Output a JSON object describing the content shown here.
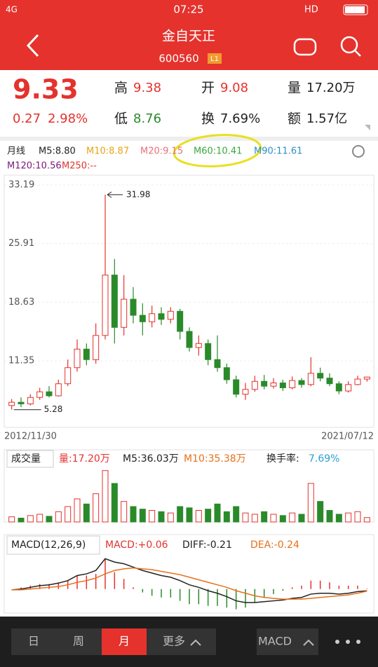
{
  "status_bar": {
    "network": "4G",
    "time": "07:25",
    "hd": "HD"
  },
  "header": {
    "title": "金自天正",
    "code": "600560",
    "badge": "L1"
  },
  "quote": {
    "price": "9.33",
    "change": "0.27",
    "change_pct": "2.98%",
    "fields": [
      {
        "label": "高",
        "value": "9.38",
        "color": "#e5322d"
      },
      {
        "label": "开",
        "value": "9.08",
        "color": "#e5322d"
      },
      {
        "label": "量",
        "value": "17.20万",
        "color": "#222222"
      },
      {
        "label": "低",
        "value": "8.76",
        "color": "#2a8a2a"
      },
      {
        "label": "换",
        "value": "7.69%",
        "color": "#222222"
      },
      {
        "label": "额",
        "value": "1.57亿",
        "color": "#222222"
      }
    ]
  },
  "ma_legend": {
    "period": "月线",
    "items": [
      {
        "text": "M5:8.80",
        "color": "#222222"
      },
      {
        "text": "M10:8.87",
        "color": "#e8a317"
      },
      {
        "text": "M20:9.15",
        "color": "#e8707a"
      },
      {
        "text": "M60:10.41",
        "color": "#3aa83a"
      },
      {
        "text": "M90:11.61",
        "color": "#2b8fc4"
      },
      {
        "text": "M120:10.56",
        "color": "#7a1a7a"
      },
      {
        "text": "M250:--",
        "color": "#e5322d"
      }
    ]
  },
  "chart_data": [
    {
      "type": "candlestick",
      "up_color": "#e5322d",
      "down_color": "#2a8a2a",
      "categories": [
        "2012/11/30",
        null,
        null,
        null,
        null,
        null,
        null,
        null,
        null,
        null,
        null,
        null,
        null,
        null,
        null,
        null,
        null,
        null,
        null,
        null,
        null,
        null,
        null,
        null,
        null,
        null,
        null,
        null,
        null,
        null,
        null,
        null,
        null,
        null,
        null,
        null,
        null,
        null,
        "2021/07/12"
      ],
      "open": [
        5.8,
        6.2,
        6.0,
        6.8,
        7.5,
        7.0,
        8.5,
        10.5,
        12.8,
        11.5,
        14.5,
        22.0,
        15.5,
        19.0,
        17.0,
        16.2,
        17.2,
        16.5,
        17.5,
        15.0,
        13.0,
        13.5,
        11.5,
        10.5,
        9.0,
        7.2,
        7.8,
        8.8,
        8.2,
        8.6,
        8.0,
        8.9,
        8.4,
        9.8,
        9.2,
        8.5,
        7.6,
        8.4,
        9.08
      ],
      "close": [
        6.2,
        6.0,
        6.8,
        7.5,
        7.0,
        8.5,
        10.5,
        12.8,
        11.5,
        14.5,
        22.0,
        15.5,
        19.0,
        17.0,
        16.2,
        17.2,
        16.5,
        17.5,
        15.0,
        13.0,
        13.5,
        11.5,
        10.5,
        9.0,
        7.2,
        7.8,
        8.8,
        8.2,
        8.6,
        8.0,
        8.9,
        8.4,
        9.8,
        9.2,
        8.5,
        7.6,
        8.4,
        9.08,
        9.33
      ],
      "high": [
        6.6,
        6.8,
        7.2,
        8.0,
        8.2,
        9.0,
        11.5,
        14.0,
        13.5,
        16.0,
        31.98,
        24.0,
        22.0,
        20.5,
        18.5,
        18.2,
        18.0,
        18.0,
        17.8,
        15.5,
        14.5,
        14.0,
        14.5,
        11.0,
        9.5,
        8.6,
        9.5,
        9.6,
        9.2,
        9.0,
        9.4,
        9.2,
        11.8,
        10.5,
        9.8,
        8.8,
        8.8,
        9.5,
        9.38
      ],
      "low": [
        5.28,
        5.6,
        5.8,
        6.5,
        6.8,
        6.9,
        8.2,
        10.0,
        10.8,
        11.0,
        14.0,
        13.5,
        14.5,
        16.0,
        14.5,
        15.5,
        15.8,
        16.0,
        14.0,
        12.5,
        12.0,
        10.8,
        10.0,
        8.5,
        6.8,
        6.5,
        7.5,
        7.8,
        7.9,
        7.6,
        7.8,
        8.0,
        8.2,
        8.8,
        8.2,
        7.2,
        7.4,
        8.3,
        8.76
      ],
      "ylim": [
        3.08,
        33.71
      ],
      "yticks": [
        33.19,
        25.91,
        18.63,
        11.35
      ]
    },
    {
      "type": "volume",
      "legend_title": "成交量",
      "legend": [
        {
          "text": "量:17.20万",
          "color": "#e5322d"
        },
        {
          "text": "M5:36.03万",
          "color": "#222222"
        },
        {
          "text": "M10:35.38万",
          "color": "#e8701a"
        },
        {
          "text": "换手率:",
          "color": "#222222"
        },
        {
          "text": "7.69%",
          "color": "#2b9fd4"
        }
      ],
      "values": [
        20,
        15,
        25,
        30,
        22,
        40,
        60,
        90,
        70,
        110,
        200,
        150,
        80,
        60,
        50,
        45,
        40,
        35,
        60,
        55,
        45,
        50,
        70,
        40,
        60,
        35,
        30,
        40,
        30,
        25,
        35,
        30,
        150,
        80,
        45,
        30,
        35,
        40,
        17.2
      ],
      "ylim": [
        0,
        210
      ]
    },
    {
      "type": "macd",
      "legend_title": "MACD(12,26,9)",
      "legend": [
        {
          "text": "MACD:+0.06",
          "color": "#e5322d"
        },
        {
          "text": "DIFF:-0.21",
          "color": "#222222"
        },
        {
          "text": "DEA:-0.24",
          "color": "#e8701a"
        }
      ],
      "hist": [
        0,
        0.2,
        0.4,
        0.6,
        0.6,
        0.8,
        1.0,
        1.6,
        1.6,
        1.8,
        3.6,
        2.0,
        1.2,
        0.2,
        -0.4,
        -0.8,
        -1.0,
        -1.0,
        -1.4,
        -1.8,
        -1.8,
        -2.0,
        -2.0,
        -2.2,
        -2.4,
        -2.2,
        -1.6,
        -1.0,
        -0.6,
        -0.2,
        0.2,
        0.4,
        1.0,
        1.0,
        0.8,
        0.4,
        0.4,
        0.4,
        0.06
      ],
      "diff": [
        -0.1,
        0.0,
        0.2,
        0.4,
        0.5,
        0.7,
        1.0,
        1.6,
        1.8,
        2.2,
        3.6,
        3.2,
        3.0,
        2.6,
        2.2,
        1.9,
        1.6,
        1.4,
        1.0,
        0.5,
        0.2,
        -0.2,
        -0.5,
        -0.9,
        -1.4,
        -1.6,
        -1.6,
        -1.5,
        -1.4,
        -1.3,
        -1.1,
        -1.0,
        -0.6,
        -0.5,
        -0.5,
        -0.6,
        -0.5,
        -0.3,
        -0.21
      ],
      "dea": [
        -0.1,
        -0.1,
        0.0,
        0.1,
        0.2,
        0.3,
        0.5,
        0.8,
        1.0,
        1.3,
        1.8,
        2.2,
        2.4,
        2.5,
        2.4,
        2.3,
        2.1,
        1.9,
        1.7,
        1.4,
        1.1,
        0.8,
        0.5,
        0.2,
        -0.2,
        -0.5,
        -0.8,
        -1.0,
        -1.1,
        -1.2,
        -1.2,
        -1.2,
        -1.1,
        -1.0,
        -0.9,
        -0.8,
        -0.7,
        -0.5,
        -0.24
      ],
      "diff_color": "#222222",
      "dea_color": "#e8701a",
      "ylim": [
        -2.6,
        3.8
      ]
    }
  ],
  "bottom_bar": {
    "tabs": [
      "日",
      "周",
      "月",
      "更多"
    ],
    "selected": 2,
    "indicator": "MACD"
  }
}
